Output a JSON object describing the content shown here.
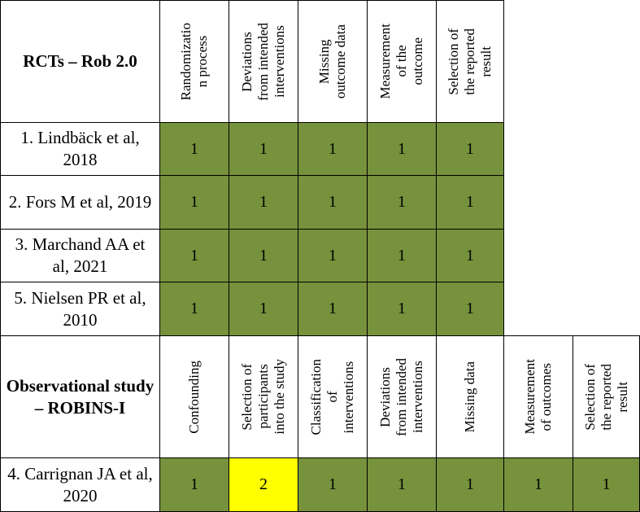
{
  "rct": {
    "title": "RCTs – Rob 2.0",
    "domains": [
      "Randomizatio\nn process",
      "Deviations\nfrom intended\ninterventions",
      "Missing\noutcome data",
      "Measurement\nof the\noutcome",
      "Selection of\nthe reported\nresult"
    ],
    "studies": [
      {
        "name": "1. Lindbäck et al, 2018",
        "scores": [
          "1",
          "1",
          "1",
          "1",
          "1"
        ]
      },
      {
        "name": "2. Fors M et al, 2019",
        "scores": [
          "1",
          "1",
          "1",
          "1",
          "1"
        ]
      },
      {
        "name": "3. Marchand AA et al, 2021",
        "scores": [
          "1",
          "1",
          "1",
          "1",
          "1"
        ]
      },
      {
        "name": "5. Nielsen PR et al, 2010",
        "scores": [
          "1",
          "1",
          "1",
          "1",
          "1"
        ]
      }
    ]
  },
  "obs": {
    "title": "Observational study – ROBINS-I",
    "domains": [
      "Confounding",
      "Selection of\nparticipants\ninto the study",
      "Classification\nof\ninterventions",
      "Deviations\nfrom intended\ninterventions",
      "Missing data",
      "Measurement\nof outcomes",
      "Selection of\nthe reported\nresult"
    ],
    "studies": [
      {
        "name": "4. Carrignan JA et al, 2020",
        "scores": [
          "1",
          "2",
          "1",
          "1",
          "1",
          "1",
          "1"
        ]
      }
    ]
  },
  "colors": {
    "low_risk": "#76923c",
    "some_concerns": "#ffff00"
  }
}
